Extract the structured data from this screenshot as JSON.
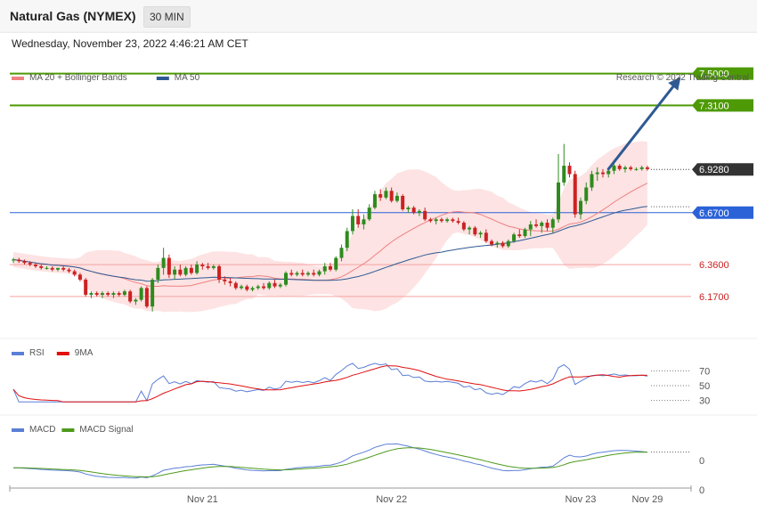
{
  "header": {
    "title": "Natural Gas (NYMEX)",
    "timeframe": "30 MIN"
  },
  "timestamp": "Wednesday, November 23, 2022 4:46:21 AM CET",
  "legend": {
    "main": [
      {
        "label": "MA 20 + Bollinger Bands",
        "color": "#f08080"
      },
      {
        "label": "MA 50",
        "color": "#2e5a94"
      }
    ],
    "rsi": [
      {
        "label": "RSI",
        "color": "#5b7fd6"
      },
      {
        "label": "9MA",
        "color": "#e01010"
      }
    ],
    "macd": [
      {
        "label": "MACD",
        "color": "#5b7fd6"
      },
      {
        "label": "MACD Signal",
        "color": "#4e9a1c"
      }
    ]
  },
  "credit": "Research © 2022 Trading Central",
  "colors": {
    "up": "#2e8b1e",
    "down": "#cc2222",
    "target": "#4e9a06",
    "pivot": "#2b62d8",
    "support": "#f4a3a3",
    "last": "#333333",
    "arrow": "#2e5a94",
    "band": "#fde3e3"
  },
  "chart_data": {
    "type": "candlestick",
    "price_range": [
      5.93,
      7.62
    ],
    "levels": [
      {
        "value": 7.5,
        "label": "7.5000",
        "kind": "target"
      },
      {
        "value": 7.31,
        "label": "7.3100",
        "kind": "target"
      },
      {
        "value": 6.928,
        "label": "6.9280",
        "kind": "last"
      },
      {
        "value": 6.67,
        "label": "6.6700",
        "kind": "pivot"
      },
      {
        "value": 6.36,
        "label": "6.3600",
        "kind": "support"
      },
      {
        "value": 6.17,
        "label": "6.1700",
        "kind": "support"
      }
    ],
    "x_labels": [
      {
        "label": "Nov 21",
        "index": 34
      },
      {
        "label": "Nov 22",
        "index": 68
      },
      {
        "label": "Nov 23",
        "index": 102
      },
      {
        "label": "Nov 29",
        "index": 114
      }
    ],
    "rsi_ticks": [
      {
        "value": 70,
        "label": "70"
      },
      {
        "value": 50,
        "label": "50"
      },
      {
        "value": 30,
        "label": "30"
      }
    ],
    "macd_ticks": [
      {
        "value": 0.04,
        "label": "0"
      },
      {
        "value": -0.12,
        "label": "0"
      }
    ],
    "projection": {
      "from_index": 107,
      "from_price": 6.93,
      "to_index": 120,
      "to_price": 7.48
    },
    "candles": [
      [
        6.39,
        6.4,
        6.37,
        6.39
      ],
      [
        6.39,
        6.4,
        6.37,
        6.38
      ],
      [
        6.38,
        6.39,
        6.36,
        6.37
      ],
      [
        6.37,
        6.38,
        6.35,
        6.36
      ],
      [
        6.36,
        6.37,
        6.34,
        6.35
      ],
      [
        6.35,
        6.36,
        6.33,
        6.34
      ],
      [
        6.34,
        6.35,
        6.33,
        6.34
      ],
      [
        6.34,
        6.35,
        6.32,
        6.33
      ],
      [
        6.33,
        6.34,
        6.32,
        6.34
      ],
      [
        6.34,
        6.35,
        6.32,
        6.33
      ],
      [
        6.33,
        6.34,
        6.31,
        6.32
      ],
      [
        6.32,
        6.33,
        6.29,
        6.3
      ],
      [
        6.3,
        6.31,
        6.26,
        6.27
      ],
      [
        6.27,
        6.28,
        6.17,
        6.18
      ],
      [
        6.18,
        6.2,
        6.16,
        6.19
      ],
      [
        6.19,
        6.2,
        6.17,
        6.18
      ],
      [
        6.18,
        6.2,
        6.16,
        6.19
      ],
      [
        6.19,
        6.2,
        6.17,
        6.18
      ],
      [
        6.18,
        6.2,
        6.16,
        6.19
      ],
      [
        6.19,
        6.2,
        6.17,
        6.18
      ],
      [
        6.18,
        6.21,
        6.17,
        6.2
      ],
      [
        6.2,
        6.21,
        6.13,
        6.14
      ],
      [
        6.14,
        6.16,
        6.12,
        6.15
      ],
      [
        6.15,
        6.23,
        6.14,
        6.22
      ],
      [
        6.22,
        6.23,
        6.1,
        6.11
      ],
      [
        6.11,
        6.28,
        6.08,
        6.27
      ],
      [
        6.27,
        6.36,
        6.25,
        6.34
      ],
      [
        6.34,
        6.46,
        6.3,
        6.4
      ],
      [
        6.4,
        6.42,
        6.28,
        6.3
      ],
      [
        6.3,
        6.35,
        6.27,
        6.33
      ],
      [
        6.33,
        6.36,
        6.29,
        6.3
      ],
      [
        6.3,
        6.35,
        6.29,
        6.34
      ],
      [
        6.34,
        6.36,
        6.3,
        6.31
      ],
      [
        6.31,
        6.38,
        6.3,
        6.36
      ],
      [
        6.36,
        6.37,
        6.33,
        6.35
      ],
      [
        6.35,
        6.37,
        6.33,
        6.34
      ],
      [
        6.34,
        6.36,
        6.33,
        6.35
      ],
      [
        6.35,
        6.36,
        6.25,
        6.27
      ],
      [
        6.27,
        6.29,
        6.24,
        6.26
      ],
      [
        6.26,
        6.28,
        6.23,
        6.25
      ],
      [
        6.25,
        6.26,
        6.21,
        6.22
      ],
      [
        6.22,
        6.24,
        6.21,
        6.23
      ],
      [
        6.23,
        6.24,
        6.2,
        6.21
      ],
      [
        6.21,
        6.23,
        6.2,
        6.22
      ],
      [
        6.22,
        6.24,
        6.21,
        6.23
      ],
      [
        6.23,
        6.25,
        6.21,
        6.22
      ],
      [
        6.22,
        6.26,
        6.21,
        6.25
      ],
      [
        6.25,
        6.27,
        6.22,
        6.23
      ],
      [
        6.23,
        6.25,
        6.22,
        6.24
      ],
      [
        6.24,
        6.32,
        6.23,
        6.31
      ],
      [
        6.31,
        6.33,
        6.29,
        6.3
      ],
      [
        6.3,
        6.32,
        6.29,
        6.31
      ],
      [
        6.31,
        6.33,
        6.29,
        6.3
      ],
      [
        6.3,
        6.32,
        6.29,
        6.31
      ],
      [
        6.31,
        6.33,
        6.29,
        6.3
      ],
      [
        6.3,
        6.33,
        6.29,
        6.32
      ],
      [
        6.32,
        6.37,
        6.3,
        6.35
      ],
      [
        6.35,
        6.37,
        6.32,
        6.33
      ],
      [
        6.33,
        6.41,
        6.32,
        6.4
      ],
      [
        6.4,
        6.48,
        6.38,
        6.46
      ],
      [
        6.46,
        6.58,
        6.44,
        6.56
      ],
      [
        6.56,
        6.69,
        6.54,
        6.65
      ],
      [
        6.65,
        6.69,
        6.58,
        6.6
      ],
      [
        6.6,
        6.66,
        6.57,
        6.63
      ],
      [
        6.63,
        6.72,
        6.62,
        6.7
      ],
      [
        6.7,
        6.8,
        6.69,
        6.78
      ],
      [
        6.78,
        6.81,
        6.74,
        6.76
      ],
      [
        6.76,
        6.82,
        6.75,
        6.8
      ],
      [
        6.8,
        6.82,
        6.73,
        6.74
      ],
      [
        6.74,
        6.79,
        6.73,
        6.77
      ],
      [
        6.77,
        6.78,
        6.68,
        6.69
      ],
      [
        6.69,
        6.71,
        6.67,
        6.7
      ],
      [
        6.7,
        6.71,
        6.66,
        6.67
      ],
      [
        6.67,
        6.69,
        6.65,
        6.68
      ],
      [
        6.68,
        6.7,
        6.62,
        6.63
      ],
      [
        6.63,
        6.64,
        6.61,
        6.62
      ],
      [
        6.62,
        6.64,
        6.6,
        6.63
      ],
      [
        6.63,
        6.64,
        6.61,
        6.62
      ],
      [
        6.62,
        6.64,
        6.61,
        6.63
      ],
      [
        6.63,
        6.64,
        6.61,
        6.62
      ],
      [
        6.62,
        6.64,
        6.6,
        6.61
      ],
      [
        6.61,
        6.62,
        6.56,
        6.57
      ],
      [
        6.57,
        6.59,
        6.54,
        6.58
      ],
      [
        6.58,
        6.59,
        6.53,
        6.54
      ],
      [
        6.54,
        6.56,
        6.52,
        6.55
      ],
      [
        6.55,
        6.57,
        6.49,
        6.5
      ],
      [
        6.5,
        6.51,
        6.47,
        6.48
      ],
      [
        6.48,
        6.5,
        6.46,
        6.49
      ],
      [
        6.49,
        6.5,
        6.46,
        6.47
      ],
      [
        6.47,
        6.51,
        6.46,
        6.5
      ],
      [
        6.5,
        6.55,
        6.49,
        6.54
      ],
      [
        6.54,
        6.57,
        6.52,
        6.53
      ],
      [
        6.53,
        6.58,
        6.52,
        6.57
      ],
      [
        6.57,
        6.62,
        6.53,
        6.6
      ],
      [
        6.6,
        6.63,
        6.58,
        6.59
      ],
      [
        6.59,
        6.62,
        6.55,
        6.61
      ],
      [
        6.61,
        6.63,
        6.56,
        6.58
      ],
      [
        6.58,
        6.64,
        6.55,
        6.63
      ],
      [
        6.63,
        7.02,
        6.61,
        6.85
      ],
      [
        6.85,
        7.08,
        6.83,
        6.95
      ],
      [
        6.95,
        6.97,
        6.88,
        6.9
      ],
      [
        6.9,
        6.92,
        6.64,
        6.66
      ],
      [
        6.66,
        6.76,
        6.63,
        6.74
      ],
      [
        6.74,
        6.85,
        6.72,
        6.82
      ],
      [
        6.82,
        6.92,
        6.8,
        6.9
      ],
      [
        6.9,
        6.94,
        6.86,
        6.91
      ],
      [
        6.91,
        6.93,
        6.88,
        6.9
      ],
      [
        6.9,
        6.93,
        6.88,
        6.92
      ],
      [
        6.92,
        6.96,
        6.9,
        6.95
      ],
      [
        6.95,
        6.96,
        6.92,
        6.93
      ],
      [
        6.93,
        6.95,
        6.91,
        6.94
      ],
      [
        6.94,
        6.95,
        6.92,
        6.93
      ],
      [
        6.93,
        6.94,
        6.92,
        6.93
      ],
      [
        6.93,
        6.95,
        6.92,
        6.94
      ],
      [
        6.94,
        6.95,
        6.92,
        6.93
      ]
    ]
  }
}
